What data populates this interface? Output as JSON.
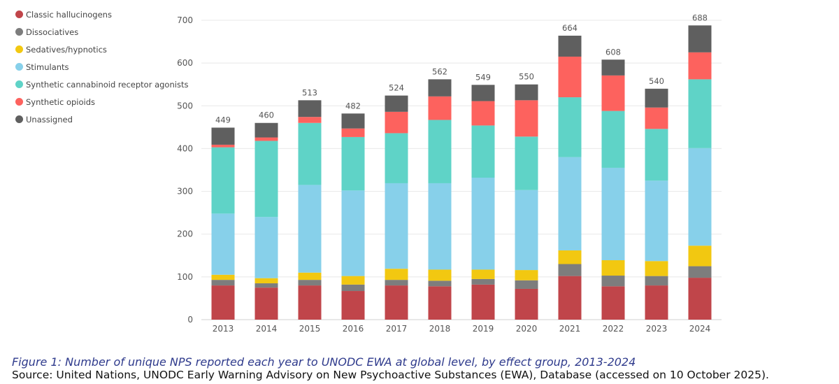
{
  "chart_data": {
    "type": "bar",
    "stacked": true,
    "title": "",
    "xlabel": "",
    "ylabel": "",
    "ylim": [
      0,
      700
    ],
    "yticks": [
      0,
      100,
      200,
      300,
      400,
      500,
      600,
      700
    ],
    "grid": true,
    "legend_position": "top-left",
    "categories": [
      "2013",
      "2014",
      "2015",
      "2016",
      "2017",
      "2018",
      "2019",
      "2020",
      "2021",
      "2022",
      "2023",
      "2024"
    ],
    "totals": [
      449,
      460,
      513,
      482,
      524,
      562,
      549,
      550,
      664,
      608,
      540,
      688
    ],
    "series": [
      {
        "name": "Classic hallucinogens",
        "color": "#c0454a",
        "values": [
          80,
          75,
          80,
          67,
          80,
          78,
          82,
          72,
          102,
          78,
          80,
          98
        ]
      },
      {
        "name": "Dissociatives",
        "color": "#7d7d7d",
        "values": [
          13,
          10,
          13,
          15,
          13,
          13,
          13,
          20,
          28,
          25,
          22,
          27
        ]
      },
      {
        "name": "Sedatives/hypnotics",
        "color": "#f2c811",
        "values": [
          12,
          12,
          17,
          20,
          26,
          26,
          22,
          24,
          32,
          36,
          35,
          48
        ]
      },
      {
        "name": "Stimulants",
        "color": "#87d0ea",
        "values": [
          143,
          143,
          205,
          200,
          200,
          202,
          215,
          187,
          218,
          216,
          188,
          228
        ]
      },
      {
        "name": "Synthetic cannabinoid receptor agonists",
        "color": "#5fd3c7",
        "values": [
          155,
          178,
          145,
          125,
          117,
          148,
          122,
          125,
          140,
          133,
          121,
          161
        ]
      },
      {
        "name": "Synthetic opioids",
        "color": "#fd625e",
        "values": [
          6,
          8,
          14,
          20,
          50,
          55,
          57,
          85,
          95,
          83,
          50,
          63
        ]
      },
      {
        "name": "Unassigned",
        "color": "#5f5f5f",
        "values": [
          40,
          34,
          39,
          35,
          38,
          40,
          38,
          37,
          49,
          37,
          44,
          63
        ]
      }
    ]
  },
  "caption": "Figure 1: Number of unique NPS reported each year to UNODC EWA at global level, by effect group, 2013-2024",
  "source": "Source: United Nations, UNODC Early Warning Advisory on New Psychoactive Substances (EWA), Database (accessed on 10 October 2025)."
}
